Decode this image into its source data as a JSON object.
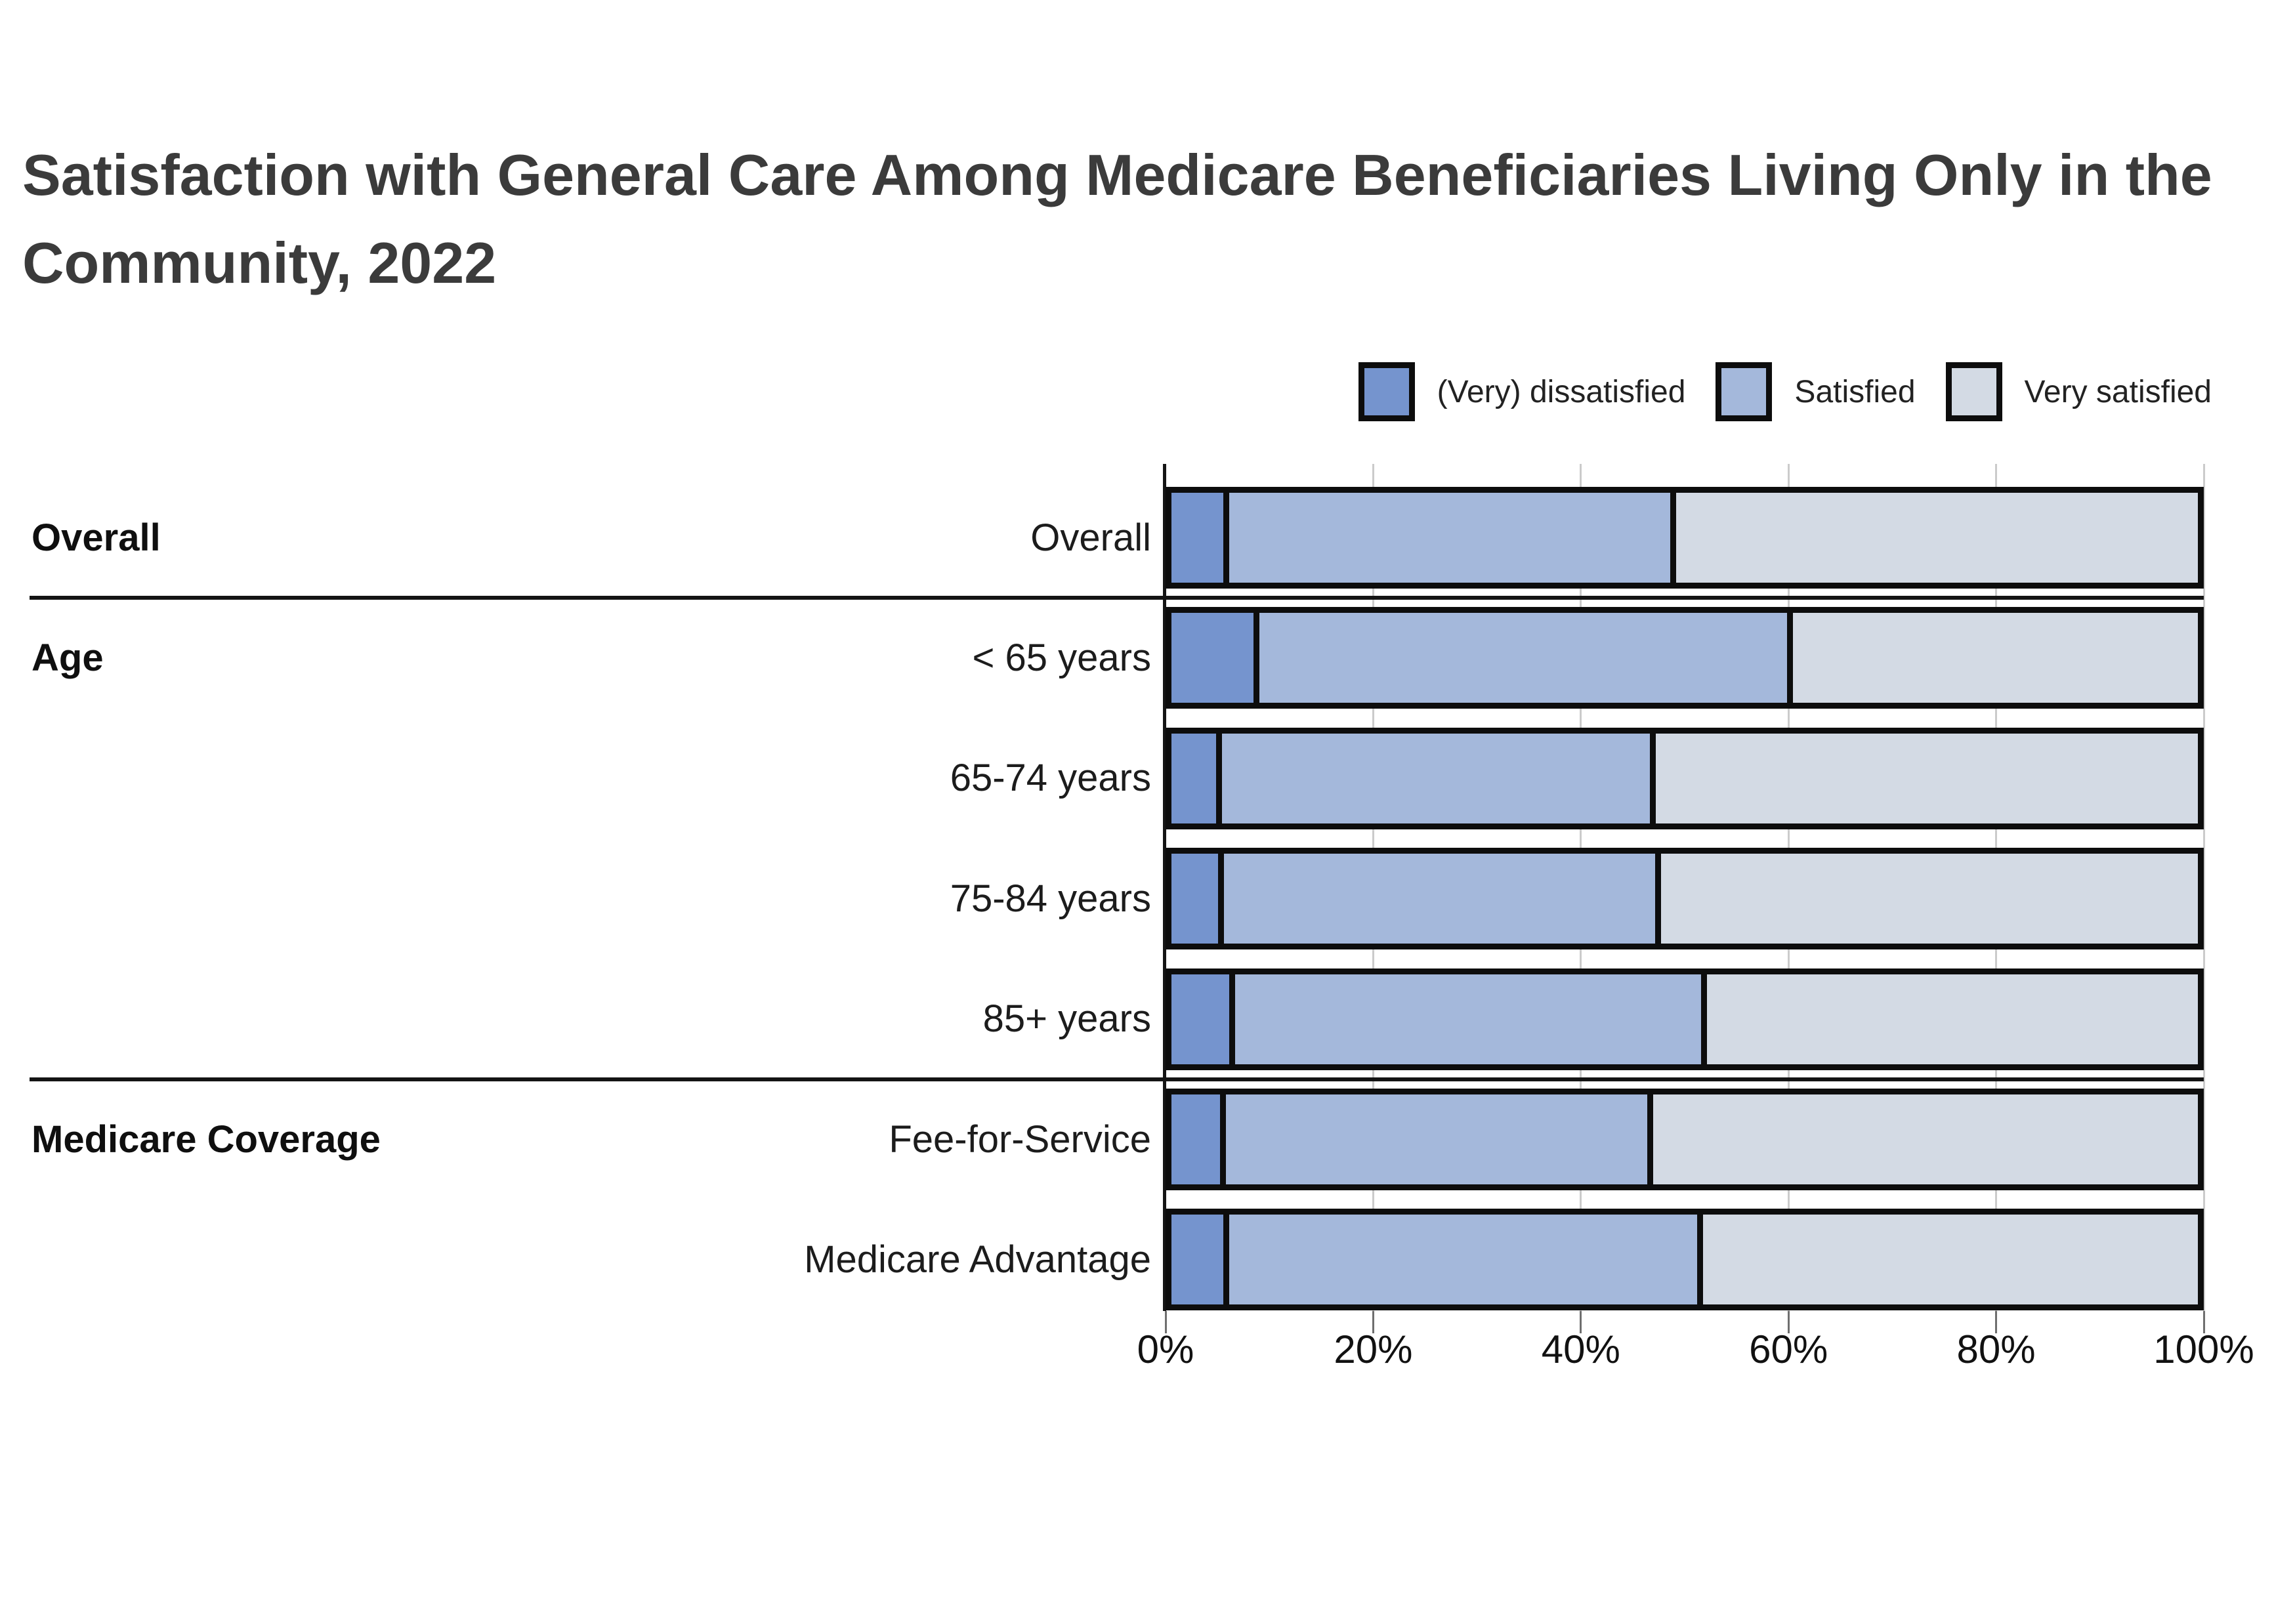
{
  "chart_data": {
    "type": "bar",
    "orientation": "horizontal",
    "stacked": true,
    "title": "Satisfaction with General Care Among Medicare Beneficiaries Living Only in the Community, 2022",
    "title_lines": [
      "Satisfaction with General Care Among Medicare Beneficiaries Living Only in the",
      "Community, 2022"
    ],
    "legend_position": "top-right",
    "series": [
      {
        "name": "(Very) dissatisfied",
        "color": "#7594ce"
      },
      {
        "name": "Satisfied",
        "color": "#a4b8db"
      },
      {
        "name": "Very satisfied",
        "color": "#d3dae4"
      }
    ],
    "rows": [
      {
        "group": "Overall",
        "label": "Overall",
        "values": [
          5.1,
          43.5,
          51.4
        ]
      },
      {
        "group": "Age",
        "label": "< 65 years",
        "values": [
          8.1,
          52.0,
          39.9
        ]
      },
      {
        "label": "65-74 years",
        "values": [
          4.4,
          42.2,
          53.4
        ]
      },
      {
        "label": "75-84 years",
        "values": [
          4.6,
          42.5,
          52.9
        ]
      },
      {
        "label": "85+ years",
        "values": [
          5.7,
          45.9,
          48.4
        ]
      },
      {
        "group": "Medicare Coverage",
        "label": "Fee-for-Service",
        "values": [
          4.8,
          41.5,
          53.7
        ]
      },
      {
        "label": "Medicare Advantage",
        "values": [
          5.1,
          46.1,
          48.8
        ]
      }
    ],
    "group_separators_after_rows": [
      0,
      4
    ],
    "x_axis": {
      "range": [
        0,
        100
      ],
      "unit": "percent",
      "ticks": [
        {
          "value": 0,
          "label": "0%"
        },
        {
          "value": 20,
          "label": "20%"
        },
        {
          "value": 40,
          "label": "40%"
        },
        {
          "value": 60,
          "label": "60%"
        },
        {
          "value": 80,
          "label": "80%"
        },
        {
          "value": 100,
          "label": "100%"
        }
      ],
      "grid": true
    },
    "colors": {
      "bar_border": "#0d0d0d",
      "gridline": "#cbcbcb",
      "axis_line": "#151515",
      "title_text": "#3b3b3b"
    }
  }
}
